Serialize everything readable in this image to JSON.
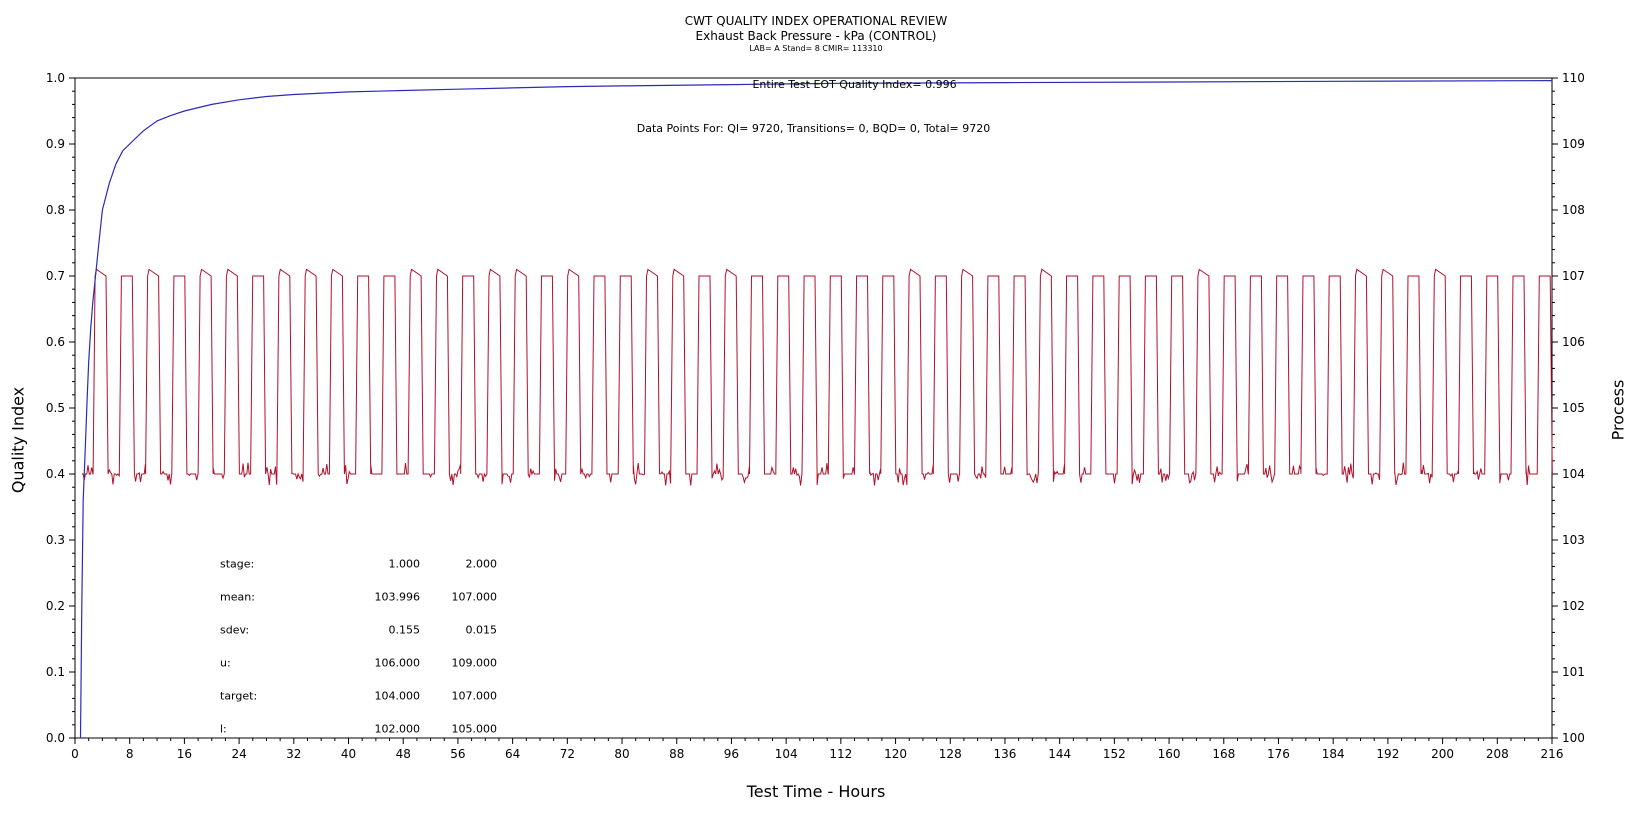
{
  "header": {
    "title": "CWT QUALITY INDEX OPERATIONAL REVIEW",
    "subtitle": "Exhaust Back Pressure - kPa (CONTROL)",
    "lab_line": "LAB= A Stand= 8 CMIR= 113310"
  },
  "colors": {
    "qi_line": "#2b2bb8",
    "process_line": "#b0102a",
    "axes": "#000000"
  },
  "chart_data": {
    "type": "line",
    "xlabel": "Test Time - Hours",
    "ylabel": "Quality Index",
    "y2label": "Process",
    "xlim": [
      0,
      216
    ],
    "ylim": [
      0,
      1.0
    ],
    "y2lim": [
      100,
      110
    ],
    "x_ticks": [
      0,
      8,
      16,
      24,
      32,
      40,
      48,
      56,
      64,
      72,
      80,
      88,
      96,
      104,
      112,
      120,
      128,
      136,
      144,
      152,
      160,
      168,
      176,
      184,
      192,
      200,
      208,
      216
    ],
    "x_tick_labels": [
      "0",
      "8",
      "16",
      "24",
      "32",
      "40",
      "48",
      "56",
      "64",
      "72",
      "80",
      "88",
      "96",
      "104",
      "112",
      "120",
      "128",
      "136",
      "144",
      "152",
      "160",
      "168",
      "176",
      "184",
      "192",
      "200",
      "208",
      "216"
    ],
    "y_ticks": [
      0,
      0.1,
      0.2,
      0.3,
      0.4,
      0.5,
      0.6,
      0.7,
      0.8,
      0.9,
      1.0
    ],
    "y_tick_labels": [
      "0.0",
      "0.1",
      "0.2",
      "0.3",
      "0.4",
      "0.5",
      "0.6",
      "0.7",
      "0.8",
      "0.9",
      "1.0"
    ],
    "y2_ticks": [
      100,
      101,
      102,
      103,
      104,
      105,
      106,
      107,
      108,
      109,
      110
    ],
    "y2_tick_labels": [
      "100",
      "101",
      "102",
      "103",
      "104",
      "105",
      "106",
      "107",
      "108",
      "109",
      "110"
    ],
    "series": [
      {
        "axis": "left",
        "x": [
          0.8,
          1.0,
          1.2,
          1.5,
          1.8,
          2.0,
          2.3,
          2.6,
          3.0,
          3.5,
          4.0,
          5.0,
          6.0,
          7.0,
          8.0,
          10,
          12,
          14,
          16,
          20,
          24,
          28,
          32,
          40,
          48,
          56,
          64,
          72,
          80,
          96,
          104,
          112,
          136,
          160,
          184,
          216
        ],
        "y": [
          0.0,
          0.2,
          0.36,
          0.44,
          0.52,
          0.57,
          0.62,
          0.66,
          0.7,
          0.75,
          0.8,
          0.84,
          0.87,
          0.89,
          0.9,
          0.92,
          0.935,
          0.943,
          0.95,
          0.96,
          0.967,
          0.972,
          0.975,
          0.979,
          0.981,
          0.983,
          0.985,
          0.987,
          0.988,
          0.99,
          0.991,
          0.992,
          0.993,
          0.994,
          0.995,
          0.996
        ]
      },
      {
        "axis": "right",
        "pattern": "square wave cycling between stage 1 (~104 kPa) and stage 2 (~107 kPa)",
        "start_hour": 1.0,
        "cycle_hours": 3.84,
        "high_hours": 1.6,
        "ramp_hours": 0.3,
        "low_value": 104.0,
        "high_value": 107.0,
        "cycles": 56
      }
    ],
    "annotations": {
      "eot": "Entire Test EOT Quality Index=  0.996",
      "points": "Data Points For: QI=  9720, Transitions=     0, BQD=     0, Total=  9720"
    },
    "stats_table": [
      {
        "label": "stage:",
        "v1": "1.000",
        "v2": "2.000"
      },
      {
        "label": "mean:",
        "v1": "103.996",
        "v2": "107.000"
      },
      {
        "label": "sdev:",
        "v1": "0.155",
        "v2": "0.015"
      },
      {
        "label": "u:",
        "v1": "106.000",
        "v2": "109.000"
      },
      {
        "label": "target:",
        "v1": "104.000",
        "v2": "107.000"
      },
      {
        "label": "l:",
        "v1": "102.000",
        "v2": "105.000"
      }
    ]
  }
}
